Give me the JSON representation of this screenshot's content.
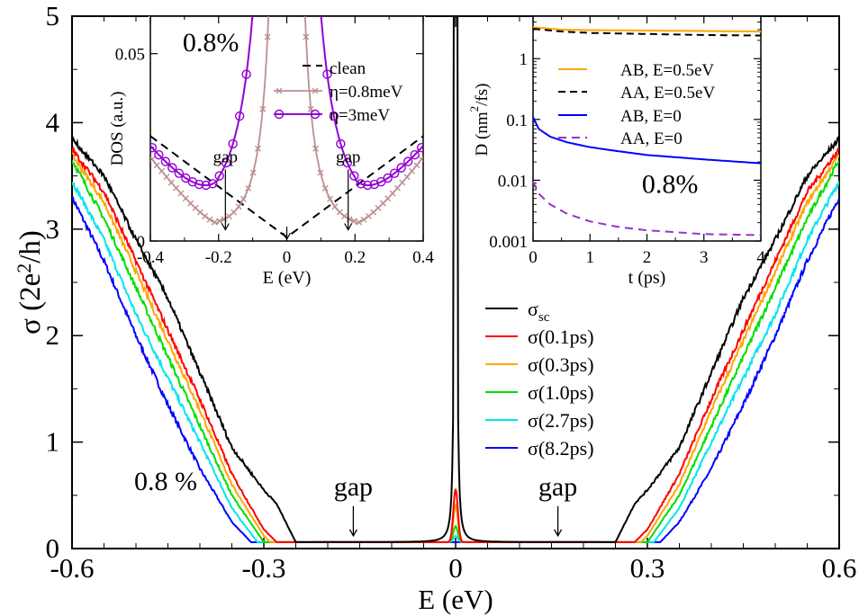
{
  "chart_data": [
    {
      "id": "main",
      "type": "line",
      "xlabel": "E (eV)",
      "ylabel_parts": {
        "sym": "σ",
        "open": " (2e",
        "sup": "2",
        "close": "/h)"
      },
      "xlim": [
        -0.6,
        0.6
      ],
      "ylim": [
        0,
        5
      ],
      "xticks": [
        -0.6,
        -0.3,
        0,
        0.3,
        0.6
      ],
      "xtick_labels": [
        "-0.6",
        "-0.3",
        "0",
        "0.3",
        "0.6"
      ],
      "yticks": [
        0,
        1,
        2,
        3,
        4,
        5
      ],
      "ytick_labels": [
        "0",
        "1",
        "2",
        "3",
        "4",
        "5"
      ],
      "annotations": [
        {
          "text": "0.8 %",
          "x": -0.5,
          "y": 0.55
        },
        {
          "text": "gap",
          "x": -0.16,
          "y": 0.5,
          "arrow_to": 0.12
        },
        {
          "text": "gap",
          "x": 0.16,
          "y": 0.5,
          "arrow_to": 0.12
        }
      ],
      "series": [
        {
          "name": "σ",
          "sub": "sc",
          "color": "#000000",
          "plateau": 0.06,
          "edge": 0.25,
          "ys": [
            [
              0.6,
              3.85
            ],
            [
              0.55,
              3.5
            ],
            [
              0.5,
              2.9
            ],
            [
              0.45,
              2.35
            ],
            [
              0.4,
              1.65
            ],
            [
              0.35,
              0.95
            ],
            [
              0.3,
              0.55
            ],
            [
              0.28,
              0.42
            ],
            [
              0.25,
              0.06
            ]
          ],
          "peak": true
        },
        {
          "name": "σ(0.1ps)",
          "color": "#ff0000",
          "plateau": 0.06,
          "edge": 0.28,
          "ys": [
            [
              0.6,
              3.75
            ],
            [
              0.55,
              3.35
            ],
            [
              0.5,
              2.7
            ],
            [
              0.45,
              2.05
            ],
            [
              0.4,
              1.4
            ],
            [
              0.35,
              0.7
            ],
            [
              0.3,
              0.18
            ],
            [
              0.28,
              0.06
            ]
          ],
          "peak_height": 0.5
        },
        {
          "name": "σ(0.3ps)",
          "color": "#ffa500",
          "plateau": 0.06,
          "edge": 0.29,
          "ys": [
            [
              0.6,
              3.7
            ],
            [
              0.55,
              3.25
            ],
            [
              0.5,
              2.6
            ],
            [
              0.45,
              1.95
            ],
            [
              0.4,
              1.3
            ],
            [
              0.35,
              0.6
            ],
            [
              0.3,
              0.12
            ],
            [
              0.29,
              0.06
            ]
          ],
          "peak_height": 0.35
        },
        {
          "name": "σ(1.0ps)",
          "color": "#00dd00",
          "plateau": 0.06,
          "edge": 0.3,
          "ys": [
            [
              0.6,
              3.65
            ],
            [
              0.55,
              3.1
            ],
            [
              0.5,
              2.45
            ],
            [
              0.45,
              1.8
            ],
            [
              0.4,
              1.15
            ],
            [
              0.35,
              0.5
            ],
            [
              0.3,
              0.06
            ]
          ],
          "peak_height": 0.15
        },
        {
          "name": "σ(2.7ps)",
          "color": "#00e5ee",
          "plateau": 0.06,
          "edge": 0.31,
          "ys": [
            [
              0.6,
              3.45
            ],
            [
              0.55,
              2.9
            ],
            [
              0.5,
              2.2
            ],
            [
              0.45,
              1.6
            ],
            [
              0.4,
              1.0
            ],
            [
              0.35,
              0.38
            ],
            [
              0.31,
              0.06
            ]
          ],
          "peak_height": 0.06
        },
        {
          "name": "σ(8.2ps)",
          "color": "#0000ff",
          "plateau": 0.06,
          "edge": 0.32,
          "ys": [
            [
              0.6,
              3.3
            ],
            [
              0.55,
              2.7
            ],
            [
              0.5,
              2.0
            ],
            [
              0.45,
              1.35
            ],
            [
              0.4,
              0.75
            ],
            [
              0.35,
              0.25
            ],
            [
              0.32,
              0.06
            ]
          ],
          "peak_height": 0.0
        }
      ]
    },
    {
      "id": "inset_dos",
      "type": "line",
      "xlabel": "E (eV)",
      "ylabel": "DOS (a.u.)",
      "xlim": [
        -0.4,
        0.4
      ],
      "ylim": [
        0,
        0.06
      ],
      "xticks": [
        -0.4,
        -0.2,
        0,
        0.2,
        0.4
      ],
      "xtick_labels": [
        "-0.4",
        "-0.2",
        "0",
        "0.2",
        "0.4"
      ],
      "yticks": [
        0,
        0.05
      ],
      "ytick_labels": [
        "0",
        "0.05"
      ],
      "annotations": [
        {
          "text": "0.8%",
          "x": -0.3,
          "y": 0.053
        },
        {
          "text": "gap",
          "x": -0.18,
          "y": 0.021,
          "arrow_to": 0.003
        },
        {
          "text": "gap",
          "x": 0.18,
          "y": 0.021,
          "arrow_to": 0.003
        }
      ],
      "series": [
        {
          "name": "clean",
          "color": "#000000",
          "dash": "9,6",
          "marker": "none"
        },
        {
          "name": "η=0.8meV",
          "color": "#bc8f8f",
          "marker": "x"
        },
        {
          "name": "η=3meV",
          "color": "#9400d3",
          "marker": "o"
        }
      ]
    },
    {
      "id": "inset_diffusion",
      "type": "line",
      "xlabel": "t (ps)",
      "ylabel_parts": {
        "open": "D (nm",
        "sup": "2",
        "close": "/fs)"
      },
      "xlim": [
        0,
        4
      ],
      "ylim": [
        0.001,
        5
      ],
      "yscale": "log",
      "xticks": [
        0,
        1,
        2,
        3,
        4
      ],
      "xtick_labels": [
        "0",
        "1",
        "2",
        "3",
        "4"
      ],
      "yticks": [
        0.001,
        0.01,
        0.1,
        1
      ],
      "ytick_labels": [
        "0.001",
        "0.01",
        "0.1",
        "1"
      ],
      "annotations": [
        {
          "text": "0.8%",
          "x": 2.5,
          "y": 0.009
        }
      ],
      "series": [
        {
          "name": "AB, E=0.5eV",
          "color": "#ffa500",
          "dash": "",
          "points": [
            [
              0,
              3.3
            ],
            [
              0.5,
              3.0
            ],
            [
              1,
              2.95
            ],
            [
              2,
              2.9
            ],
            [
              3,
              2.85
            ],
            [
              4,
              2.8
            ]
          ]
        },
        {
          "name": "AA, E=0.5eV",
          "color": "#000000",
          "dash": "8,5",
          "points": [
            [
              0,
              3.1
            ],
            [
              0.5,
              2.8
            ],
            [
              1,
              2.65
            ],
            [
              2,
              2.55
            ],
            [
              3,
              2.45
            ],
            [
              4,
              2.4
            ]
          ]
        },
        {
          "name": "AB, E=0",
          "color": "#0000ff",
          "dash": "",
          "points": [
            [
              0,
              0.11
            ],
            [
              0.1,
              0.07
            ],
            [
              0.3,
              0.052
            ],
            [
              0.6,
              0.042
            ],
            [
              1,
              0.035
            ],
            [
              1.5,
              0.03
            ],
            [
              2,
              0.026
            ],
            [
              3,
              0.022
            ],
            [
              4,
              0.019
            ]
          ]
        },
        {
          "name": "AA, E=0",
          "color": "#9932cc",
          "dash": "9,6",
          "points": [
            [
              0,
              0.0095
            ],
            [
              0.1,
              0.006
            ],
            [
              0.3,
              0.004
            ],
            [
              0.6,
              0.0028
            ],
            [
              1,
              0.0021
            ],
            [
              1.5,
              0.0017
            ],
            [
              2,
              0.0015
            ],
            [
              3,
              0.0013
            ],
            [
              4,
              0.00125
            ]
          ]
        }
      ]
    }
  ]
}
